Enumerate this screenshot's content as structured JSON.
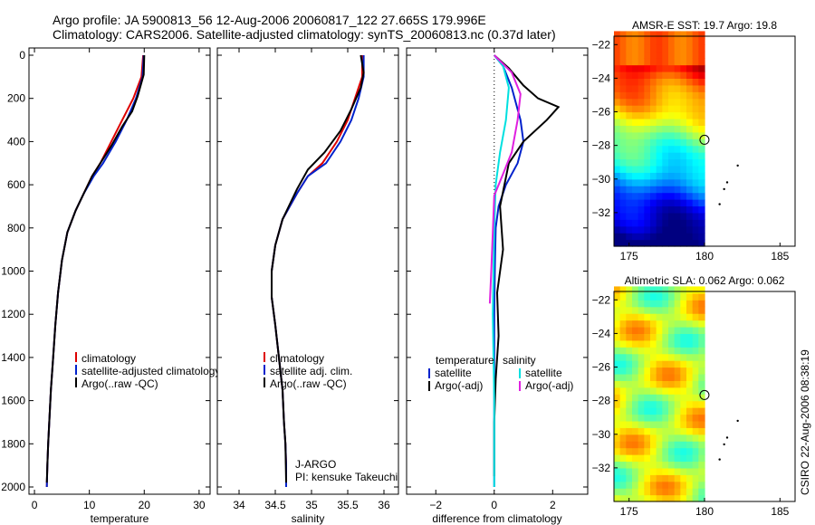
{
  "header": {
    "line1": "Argo profile: JA 5900813_56 12-Aug-2006 20060817_122 27.665S 179.996E",
    "line2": "Climatology: CARS2006. Satellite-adjusted climatology: synTS_20060813.nc (0.37d later)"
  },
  "colors": {
    "climatology": "#dd0000",
    "satellite": "#0022cc",
    "argo": "#000000",
    "salinity_satellite": "#00e0e0",
    "salinity_argo": "#e020e0"
  },
  "side_text": "CSIRO 22-Aug-2006 08:38:19",
  "chart_data": [
    {
      "type": "line",
      "name": "temperature_profile",
      "xlabel": "temperature",
      "ylabel": "",
      "xlim": [
        -1,
        32
      ],
      "ylim": [
        2000,
        0
      ],
      "xticks": [
        0,
        10,
        20,
        30
      ],
      "yticks": [
        0,
        200,
        400,
        600,
        800,
        1000,
        1200,
        1400,
        1600,
        1800,
        2000
      ],
      "y_reversed": true,
      "legend": {
        "placement": "lower-right",
        "entries": [
          {
            "label": "climatology",
            "color": "#dd0000"
          },
          {
            "label": "satellite-adjusted climatology",
            "color": "#0022cc"
          },
          {
            "label": "Argo(..raw -QC)",
            "color": "#000000"
          }
        ]
      },
      "series": [
        {
          "name": "climatology",
          "color": "#dd0000",
          "x": [
            19.8,
            19.5,
            18.0,
            16.0,
            14.0,
            12.0,
            10.5,
            9.0,
            7.5,
            6.0,
            5.0,
            4.3,
            3.8,
            3.4,
            3.0,
            2.7,
            2.5,
            2.35,
            2.25
          ],
          "y": [
            0,
            100,
            200,
            300,
            400,
            500,
            560,
            640,
            720,
            820,
            950,
            1100,
            1250,
            1400,
            1550,
            1700,
            1800,
            1900,
            2000
          ]
        },
        {
          "name": "satellite-adjusted climatology",
          "color": "#0022cc",
          "x": [
            19.9,
            19.7,
            18.5,
            16.8,
            14.8,
            12.5,
            10.8,
            9.0,
            7.5,
            6.0,
            5.0,
            4.3,
            3.8,
            3.4,
            3.0,
            2.7,
            2.5,
            2.35,
            2.25
          ],
          "y": [
            0,
            100,
            200,
            300,
            400,
            500,
            560,
            640,
            720,
            820,
            950,
            1100,
            1250,
            1400,
            1550,
            1700,
            1800,
            1900,
            2000
          ]
        },
        {
          "name": "Argo(..raw -QC)",
          "color": "#000000",
          "x": [
            20.0,
            19.9,
            18.8,
            17.8,
            16.0,
            14.0,
            12.0,
            10.5,
            9.0,
            7.5,
            6.0,
            5.0,
            4.3,
            3.8,
            3.4,
            3.0,
            2.7,
            2.5,
            2.35,
            2.25
          ],
          "y": [
            0,
            90,
            190,
            260,
            330,
            420,
            500,
            560,
            640,
            720,
            820,
            950,
            1100,
            1250,
            1400,
            1550,
            1700,
            1800,
            1900,
            1980
          ]
        }
      ]
    },
    {
      "type": "line",
      "name": "salinity_profile",
      "xlabel": "salinity",
      "ylabel": "",
      "xlim": [
        33.7,
        36.2
      ],
      "ylim": [
        2000,
        0
      ],
      "xticks": [
        34,
        34.5,
        35,
        35.5,
        36
      ],
      "y_reversed": true,
      "legend": {
        "placement": "lower-right",
        "entries": [
          {
            "label": "climatology",
            "color": "#dd0000"
          },
          {
            "label": "satellite adj. clim.",
            "color": "#0022cc"
          },
          {
            "label": "Argo(..raw -QC)",
            "color": "#000000"
          }
        ]
      },
      "annotations": [
        "J-ARGO",
        "PI: kensuke Takeuchi"
      ],
      "series": [
        {
          "name": "climatology",
          "color": "#dd0000",
          "x": [
            35.7,
            35.7,
            35.6,
            35.5,
            35.35,
            35.15,
            34.95,
            34.8,
            34.6,
            34.5,
            34.45,
            34.45,
            34.5,
            34.55,
            34.6,
            34.62,
            34.64,
            34.65,
            34.65
          ],
          "y": [
            0,
            100,
            200,
            300,
            400,
            500,
            560,
            640,
            760,
            880,
            1000,
            1120,
            1250,
            1400,
            1550,
            1700,
            1800,
            1900,
            2000
          ]
        },
        {
          "name": "satellite adj. clim.",
          "color": "#0022cc",
          "x": [
            35.72,
            35.72,
            35.65,
            35.55,
            35.4,
            35.2,
            34.95,
            34.8,
            34.6,
            34.5,
            34.45,
            34.45,
            34.5,
            34.55,
            34.6,
            34.62,
            34.64,
            34.65,
            34.65
          ],
          "y": [
            0,
            100,
            200,
            300,
            400,
            500,
            560,
            640,
            760,
            880,
            1000,
            1120,
            1250,
            1400,
            1550,
            1700,
            1800,
            1900,
            2000
          ]
        },
        {
          "name": "Argo(..raw -QC)",
          "color": "#000000",
          "x": [
            35.68,
            35.72,
            35.68,
            35.55,
            35.4,
            35.18,
            34.95,
            34.8,
            34.6,
            34.5,
            34.45,
            34.45,
            34.5,
            34.55,
            34.6,
            34.62,
            34.64,
            34.65
          ],
          "y": [
            0,
            80,
            150,
            250,
            350,
            450,
            530,
            620,
            760,
            880,
            1000,
            1120,
            1250,
            1400,
            1550,
            1700,
            1800,
            1980
          ]
        }
      ]
    },
    {
      "type": "line",
      "name": "difference_profile",
      "xlabel": "difference from climatology",
      "ylabel": "",
      "xlim": [
        -3,
        3.2
      ],
      "ylim": [
        2000,
        0
      ],
      "xticks": [
        -2,
        0,
        2
      ],
      "y_reversed": true,
      "legend": {
        "placement": "lower-right",
        "entries": [
          {
            "label": "temperature",
            "color": ""
          },
          {
            "label": "salinity",
            "color": ""
          },
          {
            "label": "satellite",
            "color": "#0022cc"
          },
          {
            "label": "satellite",
            "color": "#00e0e0"
          },
          {
            "label": "Argo(-adj)",
            "color": "#000000"
          },
          {
            "label": "Argo(-adj)",
            "color": "#e020e0"
          }
        ]
      },
      "series": [
        {
          "name": "temperature satellite",
          "color": "#0022cc",
          "x": [
            0.0,
            0.3,
            0.6,
            0.9,
            1.0,
            0.8,
            0.4,
            0.15,
            0.05,
            0.02,
            0.0,
            0.0,
            0.0,
            0.0,
            0.0
          ],
          "y": [
            0,
            50,
            150,
            300,
            400,
            500,
            600,
            700,
            800,
            1000,
            1200,
            1400,
            1600,
            1800,
            2000
          ]
        },
        {
          "name": "temperature Argo(-adj)",
          "color": "#000000",
          "x": [
            0.0,
            0.5,
            1.0,
            1.5,
            2.2,
            1.8,
            1.0,
            0.5,
            0.2,
            0.3,
            0.1,
            0.15,
            0.05,
            0.0,
            0.0
          ],
          "y": [
            0,
            60,
            140,
            200,
            240,
            300,
            400,
            500,
            700,
            900,
            1100,
            1300,
            1500,
            1700,
            1950
          ]
        },
        {
          "name": "salinity satellite",
          "color": "#00e0e0",
          "x": [
            0.0,
            0.3,
            0.5,
            0.4,
            0.2,
            0.05,
            0.0,
            -0.05,
            0.0,
            0.0
          ],
          "y": [
            0,
            50,
            150,
            300,
            450,
            600,
            800,
            1200,
            1600,
            2000
          ]
        },
        {
          "name": "salinity Argo(-adj)",
          "color": "#e020e0",
          "x": [
            0.0,
            0.6,
            0.9,
            0.8,
            0.6,
            0.3,
            0.0,
            -0.1,
            -0.15
          ],
          "y": [
            0,
            80,
            180,
            300,
            450,
            550,
            650,
            1000,
            1150
          ]
        }
      ]
    },
    {
      "type": "heatmap",
      "name": "sst_map",
      "title": "AMSR-E SST: 19.7 Argo: 19.8",
      "xlim": [
        174,
        186
      ],
      "ylim": [
        -34,
        -21.5
      ],
      "xticks": [
        175,
        180,
        185
      ],
      "yticks": [
        -22,
        -24,
        -26,
        -28,
        -30,
        -32
      ],
      "xtick_labels": [
        "175",
        "180",
        "185"
      ],
      "ytick_labels": [
        "−22",
        "−24",
        "−26",
        "−28",
        "−30",
        "−32"
      ],
      "argo_position": {
        "lon": 179.996,
        "lat": -27.665
      },
      "colormap": "jet"
    },
    {
      "type": "heatmap",
      "name": "sla_map",
      "title": "Altimetric SLA: 0.062 Argo: 0.062",
      "xlim": [
        174,
        186
      ],
      "ylim": [
        -34,
        -21.5
      ],
      "xticks": [
        175,
        180,
        185
      ],
      "yticks": [
        -22,
        -24,
        -26,
        -28,
        -30,
        -32
      ],
      "xtick_labels": [
        "175",
        "180",
        "185"
      ],
      "ytick_labels": [
        "−22",
        "−24",
        "−26",
        "−28",
        "−30",
        "−32"
      ],
      "argo_position": {
        "lon": 179.996,
        "lat": -27.665
      },
      "colormap": "jet"
    }
  ]
}
